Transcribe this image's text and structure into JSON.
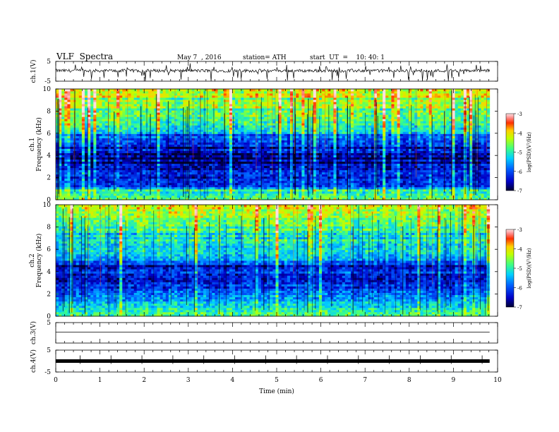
{
  "header": {
    "title": "VLF  Spectra",
    "date": "May 7  , 2016",
    "station": "station= ATH",
    "start_time": "start  UT  =    10: 40: 1"
  },
  "chart_data": [
    {
      "type": "line",
      "name": "ch1-waveform",
      "ylabel": "ch.1(V)",
      "ylim": [
        -5,
        5
      ],
      "y_ticks": [
        "5",
        "-5"
      ],
      "xlim": [
        0,
        10
      ],
      "baseline": 0.3,
      "note_values": "noisy waveform with frequent downward spikes"
    },
    {
      "type": "heatmap",
      "name": "ch1-spectrogram",
      "ylabel": "ch.1\nFrequency  (kHz)",
      "ylim": [
        0,
        10
      ],
      "y_ticks": [
        "0",
        "2",
        "4",
        "6",
        "8",
        "10"
      ],
      "xlim": [
        0,
        10
      ],
      "colorbar": {
        "label": "log(PSD)(V²/Hz)",
        "range": [
          -7,
          -3
        ],
        "ticks": [
          "-3",
          "-4",
          "-5",
          "-6",
          "-7"
        ]
      },
      "profile_khz_logpsd": [
        [
          0,
          -4.6
        ],
        [
          0.5,
          -5.1
        ],
        [
          1,
          -5.6
        ],
        [
          1.5,
          -5.8
        ],
        [
          2,
          -6.3
        ],
        [
          2.5,
          -6.3
        ],
        [
          3,
          -6.2
        ],
        [
          3.5,
          -6.5
        ],
        [
          4,
          -6.5
        ],
        [
          5,
          -6.3
        ],
        [
          6,
          -5.4
        ],
        [
          7,
          -5.0
        ],
        [
          8,
          -4.6
        ],
        [
          9,
          -4.3
        ],
        [
          10,
          -4.0
        ]
      ]
    },
    {
      "type": "heatmap",
      "name": "ch2-spectrogram",
      "ylabel": "ch.2\nFrequency  (kHz)",
      "ylim": [
        0,
        10
      ],
      "y_ticks": [
        "0",
        "2",
        "4",
        "6",
        "8",
        "10"
      ],
      "xlim": [
        0,
        10
      ],
      "colorbar": {
        "label": "log(PSD)(V²/Hz)",
        "range": [
          -7,
          -3
        ],
        "ticks": [
          "-3",
          "-4",
          "-5",
          "-6",
          "-7"
        ]
      },
      "profile_khz_logpsd": [
        [
          0,
          -4.8
        ],
        [
          0.5,
          -5.0
        ],
        [
          1,
          -5.3
        ],
        [
          1.5,
          -5.6
        ],
        [
          2,
          -5.7
        ],
        [
          3,
          -6.2
        ],
        [
          3.5,
          -6.4
        ],
        [
          4,
          -6.1
        ],
        [
          4.5,
          -6.2
        ],
        [
          5,
          -5.7
        ],
        [
          6,
          -5.2
        ],
        [
          7,
          -5.0
        ],
        [
          8,
          -4.8
        ],
        [
          9,
          -4.5
        ],
        [
          10,
          -4.2
        ]
      ]
    },
    {
      "type": "line",
      "name": "ch3-waveform",
      "ylabel": "ch.3(V)",
      "ylim": [
        -5,
        5
      ],
      "y_ticks": [
        "5"
      ],
      "xlim": [
        0,
        10
      ],
      "baseline": 0
    },
    {
      "type": "line",
      "name": "ch4-waveform",
      "ylabel": "ch.4(V)",
      "ylim": [
        -5,
        5
      ],
      "y_ticks": [
        "5",
        "-5"
      ],
      "xlim": [
        0,
        10
      ],
      "baseline": 0
    }
  ],
  "x_axis": {
    "label": "Time  (min)",
    "ticks": [
      "0",
      "1",
      "2",
      "3",
      "4",
      "5",
      "6",
      "7",
      "8",
      "9",
      "10"
    ],
    "range": [
      0,
      10
    ]
  }
}
